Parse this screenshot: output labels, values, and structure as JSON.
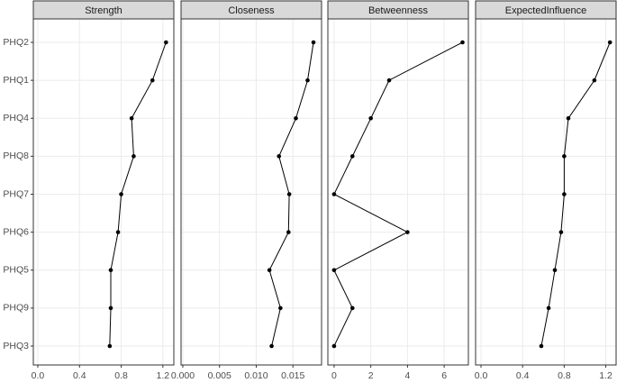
{
  "chart_data": [
    {
      "type": "line",
      "title": "Strength",
      "categories": [
        "PHQ2",
        "PHQ1",
        "PHQ4",
        "PHQ8",
        "PHQ7",
        "PHQ6",
        "PHQ5",
        "PHQ9",
        "PHQ3"
      ],
      "values": [
        1.23,
        1.1,
        0.9,
        0.92,
        0.8,
        0.77,
        0.7,
        0.7,
        0.69
      ],
      "xlim": [
        -0.043,
        1.305
      ],
      "xticks": [
        {
          "value": 0,
          "label": "0.0"
        },
        0.4,
        0.8,
        1.2
      ],
      "color": "#000000",
      "grid": true
    },
    {
      "type": "line",
      "title": "Closeness",
      "values": [
        0.0178,
        0.017,
        0.0154,
        0.0131,
        0.0145,
        0.0144,
        0.0118,
        0.0133,
        0.0121
      ],
      "xlim": [
        -0.00024,
        0.0189
      ],
      "xticks": [
        {
          "value": 0,
          "label": "0.000"
        },
        {
          "value": 0.005,
          "label": "0.005"
        },
        {
          "value": 0.01,
          "label": "0.010"
        },
        {
          "value": 0.015,
          "label": "0.015"
        }
      ],
      "color": "#000000",
      "grid": true
    },
    {
      "type": "line",
      "title": "Betweenness",
      "values": [
        7,
        3,
        2,
        1,
        0,
        4,
        0,
        1,
        0
      ],
      "xlim": [
        -0.34,
        7.32
      ],
      "xticks": [
        0,
        2,
        4,
        6
      ],
      "color": "#000000",
      "grid": true
    },
    {
      "type": "line",
      "title": "ExpectedInfluence",
      "values": [
        1.24,
        1.09,
        0.84,
        0.8,
        0.8,
        0.77,
        0.71,
        0.65,
        0.58
      ],
      "xlim": [
        -0.052,
        1.299
      ],
      "xticks": [
        {
          "value": 0,
          "label": "0.0"
        },
        0.4,
        0.8,
        1.2
      ],
      "color": "#000000",
      "grid": true
    }
  ]
}
